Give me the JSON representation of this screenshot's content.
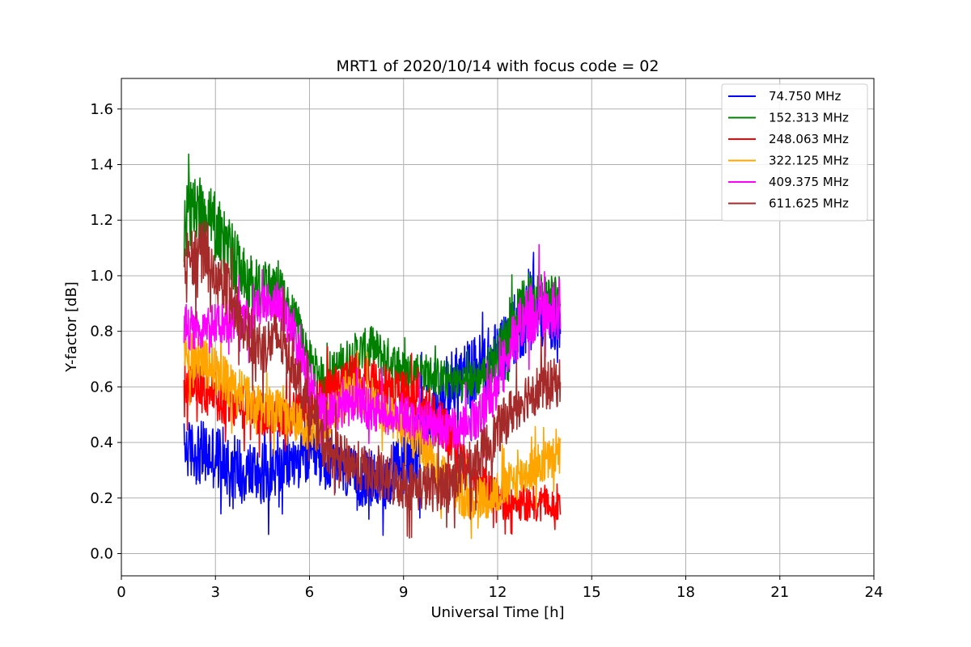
{
  "chart_data": {
    "type": "line",
    "title": "MRT1 of 2020/10/14 with focus code = 02",
    "xlabel": "Universal Time [h]",
    "ylabel": "Y-factor [dB]",
    "xlim": [
      0,
      24
    ],
    "ylim": [
      -0.08,
      1.71
    ],
    "xticks": [
      0,
      3,
      6,
      9,
      12,
      15,
      18,
      21,
      24
    ],
    "xtick_labels": [
      "0",
      "3",
      "6",
      "9",
      "12",
      "15",
      "18",
      "21",
      "24"
    ],
    "yticks": [
      0.0,
      0.2,
      0.4,
      0.6,
      0.8,
      1.0,
      1.2,
      1.4,
      1.6
    ],
    "ytick_labels": [
      "0.0",
      "0.2",
      "0.4",
      "0.6",
      "0.8",
      "1.0",
      "1.2",
      "1.4",
      "1.6"
    ],
    "grid": true,
    "legend_position": "top-right",
    "series": [
      {
        "name": " 74.750 MHz",
        "color": "#0000ff",
        "x": [
          2.0,
          2.5,
          3.0,
          3.5,
          4.0,
          4.5,
          5.0,
          5.5,
          6.0,
          6.5,
          7.0,
          7.5,
          8.0,
          8.5,
          9.0,
          9.5,
          10.0,
          10.5,
          11.0,
          11.5,
          12.0,
          12.5,
          13.0,
          13.5,
          14.0
        ],
        "y": [
          0.38,
          0.36,
          0.35,
          0.32,
          0.3,
          0.29,
          0.3,
          0.33,
          0.35,
          0.33,
          0.3,
          0.27,
          0.26,
          0.26,
          0.33,
          0.4,
          0.52,
          0.6,
          0.64,
          0.68,
          0.72,
          0.8,
          0.86,
          0.86,
          0.85
        ],
        "spread": [
          0.1,
          0.12,
          0.12,
          0.12,
          0.12,
          0.11,
          0.1,
          0.1,
          0.1,
          0.1,
          0.1,
          0.1,
          0.1,
          0.1,
          0.12,
          0.14,
          0.14,
          0.13,
          0.13,
          0.12,
          0.12,
          0.13,
          0.13,
          0.12,
          0.12
        ]
      },
      {
        "name": "152.313 MHz",
        "color": "#008000",
        "x": [
          2.0,
          2.5,
          3.0,
          3.5,
          4.0,
          4.5,
          5.0,
          5.5,
          6.0,
          6.5,
          7.0,
          7.5,
          8.0,
          8.5,
          9.0,
          9.5,
          10.0,
          10.5,
          11.0,
          11.5,
          12.0,
          12.5,
          13.0,
          13.5,
          14.0
        ],
        "y": [
          1.2,
          1.22,
          1.18,
          1.08,
          0.98,
          0.95,
          0.96,
          0.85,
          0.7,
          0.62,
          0.68,
          0.72,
          0.74,
          0.7,
          0.66,
          0.66,
          0.64,
          0.62,
          0.62,
          0.64,
          0.72,
          0.84,
          0.93,
          0.93,
          0.92
        ],
        "spread": [
          0.13,
          0.14,
          0.13,
          0.12,
          0.1,
          0.1,
          0.09,
          0.08,
          0.07,
          0.07,
          0.08,
          0.08,
          0.08,
          0.08,
          0.07,
          0.07,
          0.07,
          0.07,
          0.07,
          0.07,
          0.08,
          0.09,
          0.09,
          0.09,
          0.09
        ]
      },
      {
        "name": "248.063 MHz",
        "color": "#ff0000",
        "x": [
          2.0,
          2.5,
          3.0,
          3.5,
          4.0,
          4.5,
          5.0,
          5.5,
          6.0,
          6.5,
          7.0,
          7.5,
          8.0,
          8.5,
          9.0,
          9.5,
          10.0,
          10.5,
          11.0,
          11.5,
          12.0,
          12.5,
          13.0,
          13.5,
          14.0
        ],
        "y": [
          0.62,
          0.6,
          0.57,
          0.54,
          0.52,
          0.5,
          0.5,
          0.5,
          0.52,
          0.56,
          0.62,
          0.64,
          0.62,
          0.6,
          0.58,
          0.55,
          0.5,
          0.42,
          0.3,
          0.24,
          0.2,
          0.18,
          0.18,
          0.19,
          0.18
        ],
        "spread": [
          0.08,
          0.09,
          0.09,
          0.09,
          0.08,
          0.08,
          0.08,
          0.08,
          0.08,
          0.08,
          0.08,
          0.08,
          0.08,
          0.08,
          0.08,
          0.08,
          0.08,
          0.08,
          0.08,
          0.08,
          0.07,
          0.07,
          0.07,
          0.07,
          0.07
        ]
      },
      {
        "name": "322.125 MHz",
        "color": "#ffa500",
        "x": [
          2.0,
          2.5,
          3.0,
          3.5,
          4.0,
          4.5,
          5.0,
          5.5,
          6.0,
          6.5,
          7.0,
          7.5,
          8.0,
          8.5,
          9.0,
          9.5,
          10.0,
          10.5,
          11.0,
          11.5,
          12.0,
          12.5,
          13.0,
          13.5,
          14.0
        ],
        "y": [
          0.72,
          0.7,
          0.66,
          0.6,
          0.55,
          0.52,
          0.52,
          0.48,
          0.44,
          0.46,
          0.56,
          0.58,
          0.54,
          0.5,
          0.46,
          0.4,
          0.32,
          0.24,
          0.2,
          0.2,
          0.22,
          0.26,
          0.3,
          0.33,
          0.35
        ],
        "spread": [
          0.08,
          0.09,
          0.09,
          0.09,
          0.09,
          0.08,
          0.08,
          0.08,
          0.08,
          0.08,
          0.08,
          0.08,
          0.08,
          0.08,
          0.08,
          0.08,
          0.08,
          0.08,
          0.08,
          0.08,
          0.08,
          0.08,
          0.08,
          0.08,
          0.08
        ]
      },
      {
        "name": "409.375 MHz",
        "color": "#ff00ff",
        "x": [
          2.0,
          2.5,
          3.0,
          3.5,
          4.0,
          4.5,
          5.0,
          5.5,
          6.0,
          6.5,
          7.0,
          7.5,
          8.0,
          8.5,
          9.0,
          9.5,
          10.0,
          10.5,
          11.0,
          11.5,
          12.0,
          12.5,
          13.0,
          13.5,
          14.0
        ],
        "y": [
          0.82,
          0.8,
          0.82,
          0.84,
          0.84,
          0.9,
          0.9,
          0.78,
          0.62,
          0.5,
          0.52,
          0.54,
          0.52,
          0.5,
          0.5,
          0.48,
          0.46,
          0.44,
          0.46,
          0.52,
          0.62,
          0.78,
          0.86,
          0.88,
          0.88
        ],
        "spread": [
          0.08,
          0.08,
          0.08,
          0.08,
          0.08,
          0.08,
          0.08,
          0.08,
          0.08,
          0.08,
          0.08,
          0.08,
          0.08,
          0.08,
          0.08,
          0.08,
          0.08,
          0.08,
          0.08,
          0.09,
          0.1,
          0.11,
          0.11,
          0.11,
          0.11
        ]
      },
      {
        "name": "611.625 MHz",
        "color": "#a52a2a",
        "x": [
          2.0,
          2.5,
          3.0,
          3.5,
          4.0,
          4.5,
          5.0,
          5.5,
          6.0,
          6.5,
          7.0,
          7.5,
          8.0,
          8.5,
          9.0,
          9.5,
          10.0,
          10.5,
          11.0,
          11.5,
          12.0,
          12.5,
          13.0,
          13.5,
          14.0
        ],
        "y": [
          1.05,
          1.08,
          1.02,
          0.92,
          0.8,
          0.74,
          0.78,
          0.68,
          0.52,
          0.38,
          0.34,
          0.32,
          0.28,
          0.26,
          0.25,
          0.24,
          0.24,
          0.26,
          0.3,
          0.36,
          0.44,
          0.52,
          0.58,
          0.6,
          0.62
        ],
        "spread": [
          0.1,
          0.11,
          0.11,
          0.1,
          0.1,
          0.1,
          0.1,
          0.09,
          0.09,
          0.09,
          0.09,
          0.09,
          0.09,
          0.09,
          0.09,
          0.09,
          0.09,
          0.09,
          0.09,
          0.09,
          0.09,
          0.09,
          0.09,
          0.09,
          0.09
        ]
      }
    ]
  }
}
